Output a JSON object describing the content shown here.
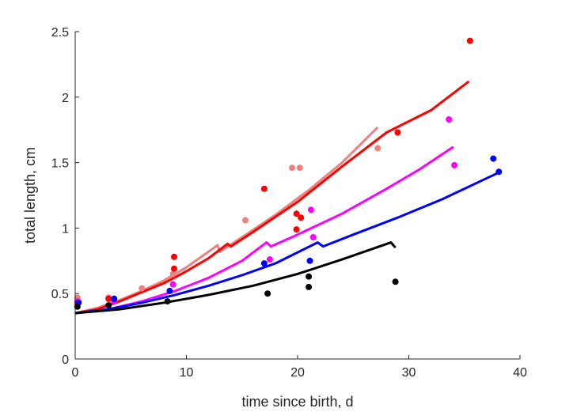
{
  "chart_data": {
    "type": "scatter",
    "title": "",
    "xlabel": "time since birth, d",
    "ylabel": "total length, cm",
    "xlim": [
      0,
      40
    ],
    "ylim": [
      0,
      2.5
    ],
    "xticks": [
      0,
      10,
      20,
      30,
      40
    ],
    "yticks": [
      0,
      0.5,
      1,
      1.5,
      2,
      2.5
    ],
    "xtick_labels": [
      "0",
      "10",
      "20",
      "30",
      "40"
    ],
    "ytick_labels": [
      "0",
      "0.5",
      "1",
      "1.5",
      "2",
      "2.5"
    ],
    "grid": false,
    "series": [
      {
        "color": "#f08080",
        "points": [
          [
            0.2,
            0.47
          ],
          [
            0.3,
            0.44
          ],
          [
            3.0,
            0.47
          ],
          [
            6.0,
            0.54
          ],
          [
            8.8,
            0.65
          ],
          [
            15.3,
            1.06
          ],
          [
            19.5,
            1.46
          ],
          [
            20.2,
            1.46
          ],
          [
            27.2,
            1.61
          ]
        ],
        "curve": [
          [
            0,
            0.35
          ],
          [
            2,
            0.39
          ],
          [
            4,
            0.45
          ],
          [
            6,
            0.52
          ],
          [
            8,
            0.6
          ],
          [
            10,
            0.7
          ],
          [
            12.5,
            0.85
          ],
          [
            12.8,
            0.87
          ],
          [
            13.0,
            0.82
          ],
          [
            15,
            0.93
          ],
          [
            18,
            1.1
          ],
          [
            21,
            1.29
          ],
          [
            24,
            1.5
          ],
          [
            27.2,
            1.77
          ]
        ]
      },
      {
        "color": "#ff0000",
        "points": [
          [
            0.2,
            0.42
          ],
          [
            3.0,
            0.46
          ],
          [
            8.9,
            0.78
          ],
          [
            8.9,
            0.69
          ],
          [
            17.0,
            1.3
          ],
          [
            19.9,
            1.11
          ],
          [
            20.3,
            1.08
          ],
          [
            19.9,
            0.99
          ],
          [
            29.0,
            1.73
          ],
          [
            35.5,
            2.43
          ]
        ],
        "curve": [
          [
            0,
            0.35
          ],
          [
            2,
            0.38
          ],
          [
            4,
            0.44
          ],
          [
            6,
            0.51
          ],
          [
            8,
            0.58
          ],
          [
            10,
            0.67
          ],
          [
            12,
            0.77
          ],
          [
            13.7,
            0.88
          ],
          [
            14.0,
            0.86
          ],
          [
            16,
            0.97
          ],
          [
            20,
            1.2
          ],
          [
            24,
            1.47
          ],
          [
            28,
            1.73
          ],
          [
            32,
            1.9
          ],
          [
            35.4,
            2.12
          ]
        ]
      },
      {
        "color": "#ff00ff",
        "points": [
          [
            0.2,
            0.44
          ],
          [
            3.5,
            0.44
          ],
          [
            8.8,
            0.57
          ],
          [
            17.5,
            0.76
          ],
          [
            21.2,
            1.14
          ],
          [
            21.4,
            0.93
          ],
          [
            33.6,
            1.83
          ],
          [
            34.1,
            1.48
          ]
        ],
        "curve": [
          [
            0,
            0.35
          ],
          [
            3,
            0.38
          ],
          [
            6,
            0.44
          ],
          [
            9,
            0.52
          ],
          [
            12,
            0.62
          ],
          [
            15,
            0.75
          ],
          [
            17.2,
            0.89
          ],
          [
            17.6,
            0.86
          ],
          [
            20,
            0.95
          ],
          [
            24,
            1.11
          ],
          [
            28,
            1.3
          ],
          [
            31,
            1.45
          ],
          [
            34,
            1.62
          ]
        ]
      },
      {
        "color": "#0000ff",
        "points": [
          [
            0.3,
            0.43
          ],
          [
            3.5,
            0.46
          ],
          [
            8.5,
            0.52
          ],
          [
            17.0,
            0.73
          ],
          [
            21.1,
            0.75
          ],
          [
            37.6,
            1.53
          ],
          [
            38.1,
            1.43
          ]
        ],
        "curve": [
          [
            0,
            0.35
          ],
          [
            3,
            0.38
          ],
          [
            6,
            0.43
          ],
          [
            9,
            0.49
          ],
          [
            12,
            0.56
          ],
          [
            15,
            0.64
          ],
          [
            18,
            0.73
          ],
          [
            21.8,
            0.89
          ],
          [
            22.3,
            0.86
          ],
          [
            25,
            0.95
          ],
          [
            29,
            1.08
          ],
          [
            33,
            1.22
          ],
          [
            38,
            1.42
          ]
        ]
      },
      {
        "color": "#000000",
        "points": [
          [
            0.2,
            0.4
          ],
          [
            3.0,
            0.41
          ],
          [
            8.3,
            0.44
          ],
          [
            17.3,
            0.5
          ],
          [
            21.0,
            0.63
          ],
          [
            21.0,
            0.55
          ],
          [
            28.8,
            0.59
          ]
        ],
        "curve": [
          [
            0,
            0.35
          ],
          [
            4,
            0.38
          ],
          [
            8,
            0.43
          ],
          [
            12,
            0.49
          ],
          [
            16,
            0.56
          ],
          [
            20,
            0.65
          ],
          [
            24,
            0.76
          ],
          [
            28.4,
            0.89
          ],
          [
            28.8,
            0.85
          ]
        ]
      }
    ]
  }
}
